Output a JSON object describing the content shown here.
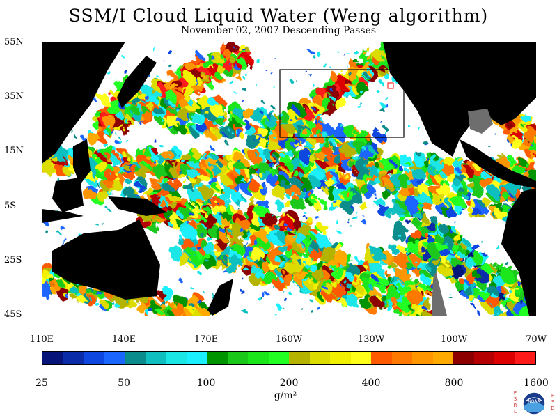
{
  "title": "SSM/I Cloud Liquid Water (Weng algorithm)",
  "subtitle": "November 02, 2007  Descending Passes",
  "map": {
    "lat_labels": [
      "55N",
      "35N",
      "15N",
      "5S",
      "25S",
      "45S"
    ],
    "lon_labels": [
      "110E",
      "140E",
      "170E",
      "160W",
      "130W",
      "100W",
      "70W"
    ],
    "land_color": "#000000",
    "missing_color": "#6e6e6e",
    "background_color": "#ffffff",
    "box_color": "#000000",
    "marker_color": "#ff0000"
  },
  "colorbar": {
    "colors": [
      "#06147a",
      "#0a2ca8",
      "#0d47e0",
      "#1a66ff",
      "#0a8c8c",
      "#0fbfbf",
      "#1ae6e6",
      "#1af0ff",
      "#009400",
      "#1ac81a",
      "#1ae61a",
      "#22ff22",
      "#b4b400",
      "#dcdc00",
      "#f0f000",
      "#ffff1a",
      "#ff5a00",
      "#ff7800",
      "#ff9600",
      "#ffaa00",
      "#8c0000",
      "#b40000",
      "#dc0000",
      "#ff1a1a"
    ],
    "labels": [
      "25",
      "50",
      "100",
      "200",
      "400",
      "800",
      "1600"
    ],
    "units": "g/m²"
  },
  "logo": {
    "left_text": "ESRL",
    "right_text": "PSD",
    "center_text": "NOAA"
  }
}
